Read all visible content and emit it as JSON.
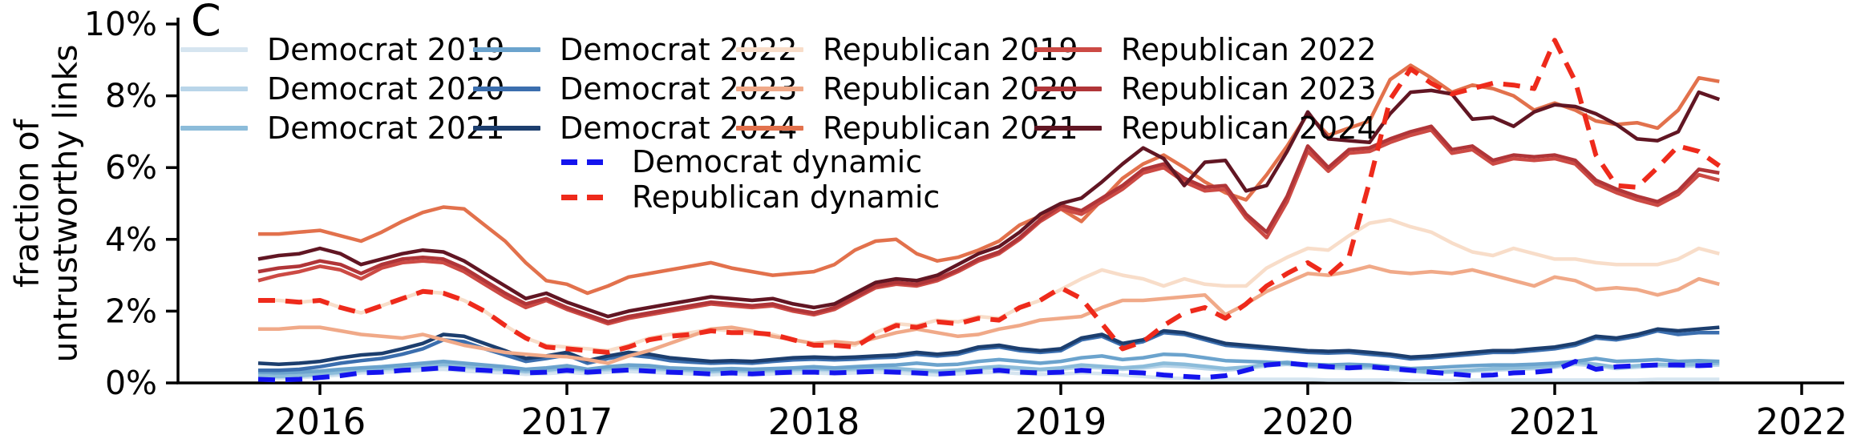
{
  "panel_label": "C",
  "y_axis": {
    "label_line1": "fraction of",
    "label_line2": "untrustworthy links",
    "ticks": [
      "0%",
      "2%",
      "4%",
      "6%",
      "8%",
      "10%"
    ],
    "tick_values": [
      0,
      2,
      4,
      6,
      8,
      10
    ]
  },
  "x_axis": {
    "ticks": [
      "2016",
      "2017",
      "2018",
      "2019",
      "2020",
      "2021",
      "2022"
    ],
    "tick_values": [
      2016,
      2017,
      2018,
      2019,
      2020,
      2021,
      2022
    ]
  },
  "chart_data": {
    "type": "line",
    "title": "",
    "xlabel": "",
    "ylabel": "fraction of untrustworthy links",
    "ylim": [
      0,
      10
    ],
    "x_range_years": [
      2015.45,
      2022.2
    ],
    "x_start": 2015.75,
    "x_step": 0.0833333,
    "grid": false,
    "legend_position": "upper-left, 4 columns + centered dynamic block",
    "series": [
      {
        "label": "Democrat 2019",
        "color": "#d6e5f0",
        "dash": false,
        "values": [
          0.15,
          0.12,
          0.15,
          0.18,
          0.22,
          0.28,
          0.3,
          0.32,
          0.35,
          0.38,
          0.33,
          0.3,
          0.28,
          0.24,
          0.26,
          0.3,
          0.26,
          0.3,
          0.32,
          0.3,
          0.27,
          0.25,
          0.23,
          0.25,
          0.23,
          0.25,
          0.27,
          0.28,
          0.26,
          0.28,
          0.3,
          0.28,
          0.25,
          0.22,
          0.25,
          0.28,
          0.3,
          0.26,
          0.24,
          0.25,
          0.28,
          0.26,
          0.22,
          0.18,
          0.14,
          0.12,
          0.1,
          0.1,
          0.1,
          0.1,
          0.1,
          0.1,
          0.08,
          0.08,
          0.08,
          0.08,
          0.07,
          0.07,
          0.07,
          0.08,
          0.08,
          0.08,
          0.08,
          0.08,
          0.08,
          0.08,
          0.08,
          0.08,
          0.1,
          0.1,
          0.1,
          0.1
        ]
      },
      {
        "label": "Democrat 2020",
        "color": "#b9d5e9",
        "dash": false,
        "values": [
          0.18,
          0.16,
          0.18,
          0.22,
          0.27,
          0.33,
          0.36,
          0.4,
          0.44,
          0.48,
          0.43,
          0.38,
          0.35,
          0.3,
          0.33,
          0.38,
          0.32,
          0.36,
          0.4,
          0.38,
          0.34,
          0.32,
          0.3,
          0.32,
          0.3,
          0.32,
          0.34,
          0.36,
          0.34,
          0.36,
          0.38,
          0.36,
          0.33,
          0.3,
          0.33,
          0.38,
          0.42,
          0.38,
          0.35,
          0.38,
          0.44,
          0.42,
          0.38,
          0.42,
          0.48,
          0.45,
          0.4,
          0.36,
          0.4,
          0.48,
          0.52,
          0.46,
          0.42,
          0.4,
          0.42,
          0.38,
          0.33,
          0.28,
          0.3,
          0.33,
          0.36,
          0.38,
          0.4,
          0.44,
          0.52,
          0.48,
          0.4,
          0.44,
          0.48,
          0.46,
          0.48,
          0.5
        ]
      },
      {
        "label": "Democrat 2021",
        "color": "#8cbcda",
        "dash": false,
        "values": [
          0.2,
          0.18,
          0.2,
          0.25,
          0.3,
          0.36,
          0.4,
          0.44,
          0.48,
          0.52,
          0.47,
          0.42,
          0.38,
          0.33,
          0.36,
          0.42,
          0.36,
          0.4,
          0.44,
          0.42,
          0.38,
          0.36,
          0.33,
          0.36,
          0.33,
          0.36,
          0.38,
          0.4,
          0.38,
          0.4,
          0.42,
          0.4,
          0.36,
          0.33,
          0.36,
          0.42,
          0.46,
          0.42,
          0.38,
          0.42,
          0.5,
          0.46,
          0.42,
          0.46,
          0.55,
          0.52,
          0.46,
          0.4,
          0.44,
          0.52,
          0.58,
          0.5,
          0.46,
          0.44,
          0.46,
          0.42,
          0.36,
          0.3,
          0.33,
          0.36,
          0.4,
          0.42,
          0.44,
          0.48,
          0.58,
          0.52,
          0.44,
          0.48,
          0.52,
          0.5,
          0.52,
          0.55
        ]
      },
      {
        "label": "Democrat 2022",
        "color": "#6ba3cd",
        "dash": false,
        "values": [
          0.3,
          0.28,
          0.3,
          0.33,
          0.38,
          0.42,
          0.45,
          0.5,
          0.55,
          0.6,
          0.55,
          0.5,
          0.45,
          0.38,
          0.42,
          0.48,
          0.38,
          0.45,
          0.5,
          0.48,
          0.42,
          0.4,
          0.38,
          0.4,
          0.38,
          0.4,
          0.42,
          0.45,
          0.42,
          0.45,
          0.48,
          0.5,
          0.55,
          0.5,
          0.52,
          0.6,
          0.65,
          0.6,
          0.55,
          0.6,
          0.7,
          0.75,
          0.65,
          0.7,
          0.8,
          0.78,
          0.7,
          0.62,
          0.6,
          0.58,
          0.55,
          0.52,
          0.5,
          0.52,
          0.5,
          0.45,
          0.4,
          0.42,
          0.45,
          0.48,
          0.5,
          0.5,
          0.52,
          0.55,
          0.6,
          0.68,
          0.6,
          0.62,
          0.65,
          0.6,
          0.62,
          0.6
        ]
      },
      {
        "label": "Democrat 2023",
        "color": "#3b6eae",
        "dash": false,
        "values": [
          0.35,
          0.35,
          0.38,
          0.45,
          0.55,
          0.62,
          0.68,
          0.8,
          0.95,
          1.2,
          1.15,
          0.95,
          0.78,
          0.6,
          0.68,
          0.78,
          0.55,
          0.68,
          0.78,
          0.72,
          0.62,
          0.58,
          0.55,
          0.57,
          0.55,
          0.6,
          0.64,
          0.66,
          0.64,
          0.66,
          0.7,
          0.72,
          0.8,
          0.75,
          0.8,
          0.95,
          1.0,
          0.9,
          0.85,
          0.9,
          1.2,
          1.3,
          1.05,
          1.15,
          1.4,
          1.35,
          1.2,
          1.05,
          1.0,
          0.95,
          0.9,
          0.85,
          0.83,
          0.85,
          0.8,
          0.75,
          0.67,
          0.7,
          0.75,
          0.8,
          0.85,
          0.85,
          0.9,
          0.95,
          1.05,
          1.25,
          1.2,
          1.3,
          1.45,
          1.35,
          1.4,
          1.4
        ]
      },
      {
        "label": "Democrat 2024",
        "color": "#1c3e6e",
        "dash": false,
        "values": [
          0.55,
          0.52,
          0.55,
          0.6,
          0.7,
          0.78,
          0.82,
          0.95,
          1.1,
          1.35,
          1.3,
          1.1,
          0.9,
          0.68,
          0.75,
          0.85,
          0.62,
          0.75,
          0.85,
          0.8,
          0.7,
          0.65,
          0.6,
          0.62,
          0.6,
          0.65,
          0.7,
          0.72,
          0.7,
          0.72,
          0.75,
          0.78,
          0.85,
          0.8,
          0.85,
          1.0,
          1.05,
          0.95,
          0.9,
          0.95,
          1.25,
          1.35,
          1.1,
          1.2,
          1.45,
          1.4,
          1.25,
          1.1,
          1.05,
          1.0,
          0.95,
          0.9,
          0.88,
          0.9,
          0.85,
          0.8,
          0.72,
          0.75,
          0.8,
          0.85,
          0.9,
          0.9,
          0.95,
          1.0,
          1.1,
          1.3,
          1.25,
          1.35,
          1.5,
          1.45,
          1.5,
          1.55
        ]
      },
      {
        "label": "Republican 2019",
        "color": "#f8ddc9",
        "dash": false,
        "values": [
          2.3,
          2.3,
          2.25,
          2.3,
          2.1,
          1.95,
          2.15,
          2.35,
          2.55,
          2.5,
          2.3,
          2.0,
          1.6,
          1.25,
          1.05,
          1.0,
          0.95,
          0.9,
          1.05,
          1.25,
          1.35,
          1.4,
          1.5,
          1.45,
          1.4,
          1.35,
          1.2,
          1.1,
          1.1,
          1.05,
          1.4,
          1.65,
          1.6,
          1.75,
          1.7,
          1.85,
          1.8,
          2.1,
          2.3,
          2.6,
          2.9,
          3.15,
          3.0,
          2.9,
          2.7,
          2.9,
          2.75,
          2.7,
          2.7,
          3.2,
          3.5,
          3.75,
          3.7,
          4.1,
          4.45,
          4.55,
          4.35,
          4.2,
          3.9,
          3.65,
          3.55,
          3.75,
          3.6,
          3.45,
          3.45,
          3.35,
          3.3,
          3.3,
          3.3,
          3.45,
          3.75,
          3.6
        ]
      },
      {
        "label": "Republican 2020",
        "color": "#f0a988",
        "dash": false,
        "values": [
          1.5,
          1.5,
          1.55,
          1.55,
          1.45,
          1.35,
          1.3,
          1.25,
          1.35,
          1.2,
          1.05,
          0.95,
          0.85,
          0.8,
          0.75,
          0.73,
          0.65,
          0.55,
          0.75,
          0.9,
          1.1,
          1.3,
          1.5,
          1.55,
          1.45,
          1.3,
          1.2,
          1.1,
          1.15,
          1.1,
          1.25,
          1.4,
          1.5,
          1.4,
          1.3,
          1.35,
          1.5,
          1.6,
          1.75,
          1.8,
          1.85,
          2.1,
          2.3,
          2.3,
          2.35,
          2.4,
          2.45,
          1.9,
          2.2,
          2.55,
          2.8,
          3.05,
          3.0,
          3.1,
          3.25,
          3.1,
          3.05,
          3.1,
          3.05,
          3.15,
          3.0,
          2.85,
          2.7,
          2.95,
          2.85,
          2.6,
          2.65,
          2.6,
          2.45,
          2.6,
          2.9,
          2.75
        ]
      },
      {
        "label": "Republican 2021",
        "color": "#e2714c",
        "dash": false,
        "values": [
          4.15,
          4.15,
          4.2,
          4.25,
          4.1,
          3.95,
          4.2,
          4.5,
          4.75,
          4.9,
          4.85,
          4.4,
          3.95,
          3.35,
          2.85,
          2.75,
          2.5,
          2.7,
          2.95,
          3.05,
          3.15,
          3.25,
          3.35,
          3.2,
          3.1,
          3.0,
          3.05,
          3.1,
          3.3,
          3.7,
          3.95,
          4.0,
          3.6,
          3.4,
          3.5,
          3.7,
          3.95,
          4.4,
          4.65,
          4.85,
          4.5,
          5.1,
          5.7,
          6.1,
          6.35,
          6.0,
          5.6,
          5.3,
          5.1,
          5.8,
          6.6,
          7.5,
          6.9,
          7.1,
          7.3,
          8.45,
          8.85,
          8.5,
          8.1,
          8.3,
          8.2,
          8.0,
          7.6,
          7.8,
          7.6,
          7.3,
          7.2,
          7.25,
          7.1,
          7.6,
          8.5,
          8.4
        ]
      },
      {
        "label": "Republican 2022",
        "color": "#cc4a44",
        "dash": false,
        "values": [
          2.85,
          3.0,
          3.1,
          3.25,
          3.15,
          2.9,
          3.2,
          3.35,
          3.4,
          3.35,
          3.1,
          2.75,
          2.4,
          2.1,
          2.3,
          2.05,
          1.85,
          1.65,
          1.8,
          1.9,
          2.0,
          2.1,
          2.2,
          2.15,
          2.1,
          2.15,
          2.0,
          1.9,
          2.05,
          2.35,
          2.65,
          2.75,
          2.7,
          2.85,
          3.1,
          3.4,
          3.6,
          4.0,
          4.5,
          4.85,
          4.7,
          5.05,
          5.4,
          5.85,
          6.0,
          5.6,
          5.35,
          5.4,
          4.6,
          4.05,
          5.05,
          6.45,
          5.9,
          6.4,
          6.45,
          6.7,
          6.9,
          7.05,
          6.4,
          6.5,
          6.1,
          6.25,
          6.2,
          6.25,
          6.1,
          5.55,
          5.3,
          5.1,
          4.95,
          5.25,
          5.8,
          5.65
        ]
      },
      {
        "label": "Republican 2023",
        "color": "#b03538",
        "dash": false,
        "values": [
          3.1,
          3.2,
          3.25,
          3.4,
          3.3,
          3.05,
          3.3,
          3.45,
          3.5,
          3.45,
          3.2,
          2.85,
          2.5,
          2.2,
          2.35,
          2.1,
          1.9,
          1.7,
          1.85,
          1.95,
          2.05,
          2.15,
          2.25,
          2.2,
          2.15,
          2.2,
          2.05,
          1.95,
          2.1,
          2.4,
          2.7,
          2.8,
          2.75,
          2.9,
          3.15,
          3.45,
          3.65,
          4.05,
          4.55,
          4.95,
          4.8,
          5.15,
          5.5,
          5.95,
          6.1,
          5.7,
          5.45,
          5.5,
          4.7,
          4.2,
          5.2,
          6.6,
          6.0,
          6.5,
          6.55,
          6.8,
          7.0,
          7.15,
          6.5,
          6.6,
          6.2,
          6.35,
          6.3,
          6.35,
          6.2,
          5.65,
          5.4,
          5.2,
          5.05,
          5.35,
          5.95,
          5.85
        ]
      },
      {
        "label": "Republican 2024",
        "color": "#611623",
        "dash": false,
        "values": [
          3.45,
          3.55,
          3.6,
          3.75,
          3.6,
          3.3,
          3.45,
          3.6,
          3.7,
          3.65,
          3.4,
          3.05,
          2.7,
          2.35,
          2.5,
          2.25,
          2.05,
          1.85,
          2.0,
          2.1,
          2.2,
          2.3,
          2.4,
          2.35,
          2.3,
          2.35,
          2.2,
          2.1,
          2.2,
          2.5,
          2.8,
          2.9,
          2.85,
          3.0,
          3.3,
          3.6,
          3.8,
          4.2,
          4.7,
          5.0,
          5.15,
          5.6,
          6.1,
          6.55,
          6.25,
          5.5,
          6.15,
          6.2,
          5.35,
          5.5,
          6.45,
          7.55,
          6.8,
          6.75,
          6.7,
          7.5,
          8.1,
          8.15,
          8.05,
          7.35,
          7.4,
          7.15,
          7.55,
          7.75,
          7.7,
          7.5,
          7.2,
          6.8,
          6.75,
          7.0,
          8.1,
          7.9
        ]
      },
      {
        "label": "Democrat dynamic",
        "color": "#1414ee",
        "dash": true,
        "values": [
          0.1,
          0.08,
          0.1,
          0.15,
          0.2,
          0.28,
          0.3,
          0.35,
          0.38,
          0.42,
          0.38,
          0.35,
          0.32,
          0.28,
          0.3,
          0.35,
          0.3,
          0.33,
          0.36,
          0.33,
          0.3,
          0.28,
          0.25,
          0.28,
          0.25,
          0.28,
          0.3,
          0.3,
          0.28,
          0.3,
          0.32,
          0.3,
          0.28,
          0.25,
          0.28,
          0.32,
          0.35,
          0.3,
          0.28,
          0.3,
          0.35,
          0.32,
          0.3,
          0.28,
          0.22,
          0.18,
          0.15,
          0.2,
          0.35,
          0.5,
          0.55,
          0.5,
          0.45,
          0.42,
          0.45,
          0.4,
          0.35,
          0.3,
          0.25,
          0.2,
          0.22,
          0.28,
          0.3,
          0.35,
          0.6,
          0.38,
          0.45,
          0.48,
          0.5,
          0.5,
          0.48,
          0.5
        ]
      },
      {
        "label": "Republican dynamic",
        "color": "#ee2a1b",
        "dash": true,
        "values": [
          2.3,
          2.3,
          2.25,
          2.3,
          2.1,
          1.95,
          2.15,
          2.35,
          2.55,
          2.5,
          2.3,
          2.0,
          1.6,
          1.25,
          1.0,
          0.95,
          0.9,
          0.85,
          1.0,
          1.2,
          1.3,
          1.35,
          1.45,
          1.4,
          1.4,
          1.35,
          1.2,
          1.05,
          1.05,
          1.0,
          1.35,
          1.6,
          1.55,
          1.7,
          1.65,
          1.8,
          1.75,
          2.1,
          2.3,
          2.65,
          2.35,
          1.65,
          0.95,
          1.15,
          1.6,
          1.95,
          2.1,
          1.8,
          2.2,
          2.7,
          3.05,
          3.35,
          3.0,
          3.5,
          5.6,
          7.9,
          8.75,
          8.35,
          8.05,
          8.2,
          8.35,
          8.3,
          8.2,
          9.55,
          8.4,
          6.35,
          5.5,
          5.45,
          6.0,
          6.6,
          6.45,
          6.05
        ]
      }
    ]
  }
}
